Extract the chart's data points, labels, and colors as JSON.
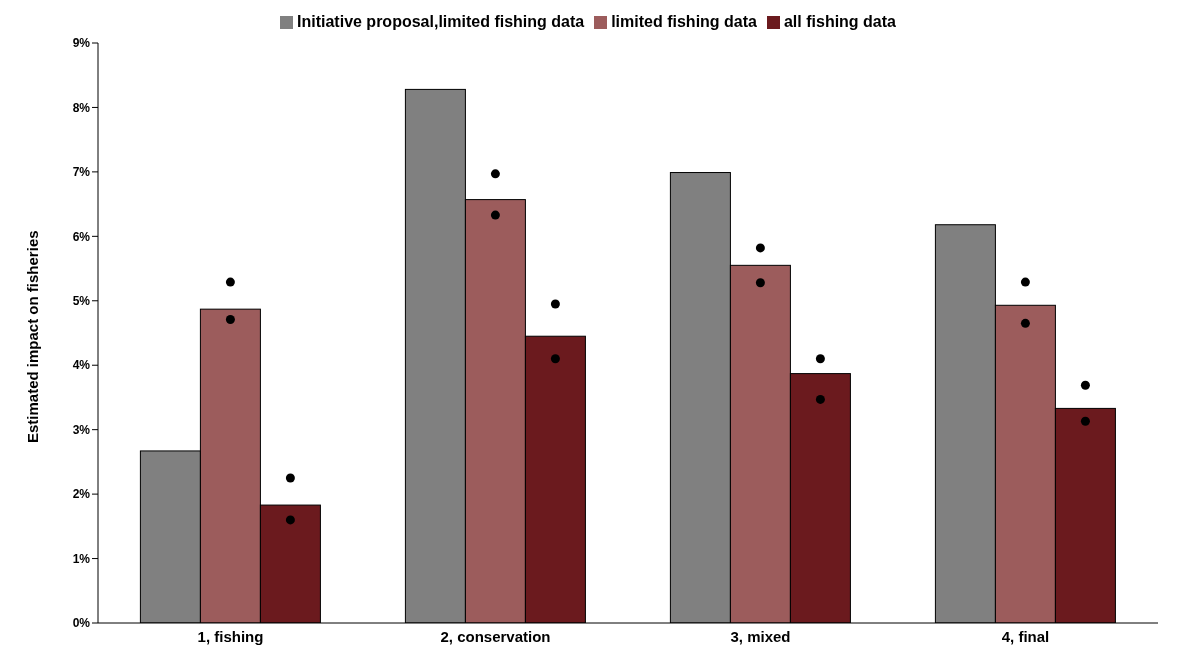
{
  "chart_data": {
    "type": "bar",
    "ylabel": "Estimated impact on fisheries",
    "categories": [
      "1, fishing",
      "2, conservation",
      "3, mixed",
      "4, final"
    ],
    "series": [
      {
        "name": "Initiative proposal,limited fishing data",
        "color": "#808080",
        "values": [
          2.67,
          8.28,
          6.99,
          6.18
        ]
      },
      {
        "name": "limited fishing data",
        "color": "#9c5c5c",
        "values": [
          4.87,
          6.57,
          5.55,
          4.93
        ]
      },
      {
        "type": "scatter",
        "color": "#000000",
        "x": [
          "1, fishing",
          "2, conservation",
          "3, mixed",
          "4, final"
        ],
        "values": [
          5.29,
          6.97,
          5.82,
          5.29
        ]
      },
      {
        "type": "scatter",
        "color": "#000000",
        "x": [
          "1, fishing",
          "2, conservation",
          "3, mixed",
          "4, final"
        ],
        "values": [
          4.71,
          6.33,
          5.28,
          4.65
        ]
      },
      {
        "name": "all fishing data",
        "color": "#6b1a1e",
        "values": [
          1.83,
          4.45,
          3.87,
          3.33
        ]
      },
      {
        "type": "scatter",
        "color": "#000000",
        "x": [
          "1, fishing",
          "2, conservation",
          "3, mixed",
          "4, final"
        ],
        "values": [
          2.25,
          4.95,
          4.1,
          3.69
        ]
      },
      {
        "type": "scatter",
        "color": "#000000",
        "x": [
          "1, fishing",
          "2, conservation",
          "3, mixed",
          "4, final"
        ],
        "values": [
          1.6,
          4.1,
          3.47,
          3.13
        ]
      }
    ],
    "ylim": [
      0,
      9
    ],
    "yticks": [
      {
        "value": 0,
        "label": "0%"
      },
      {
        "value": 1,
        "label": "1%"
      },
      {
        "value": 2,
        "label": "2%"
      },
      {
        "value": 3,
        "label": "3%"
      },
      {
        "value": 4,
        "label": "4%"
      },
      {
        "value": 5,
        "label": "5%"
      },
      {
        "value": 6,
        "label": "6%"
      },
      {
        "value": 7,
        "label": "7%"
      },
      {
        "value": 8,
        "label": "8%"
      },
      {
        "value": 9,
        "label": "9%"
      }
    ],
    "grid": false,
    "legend": "top"
  }
}
